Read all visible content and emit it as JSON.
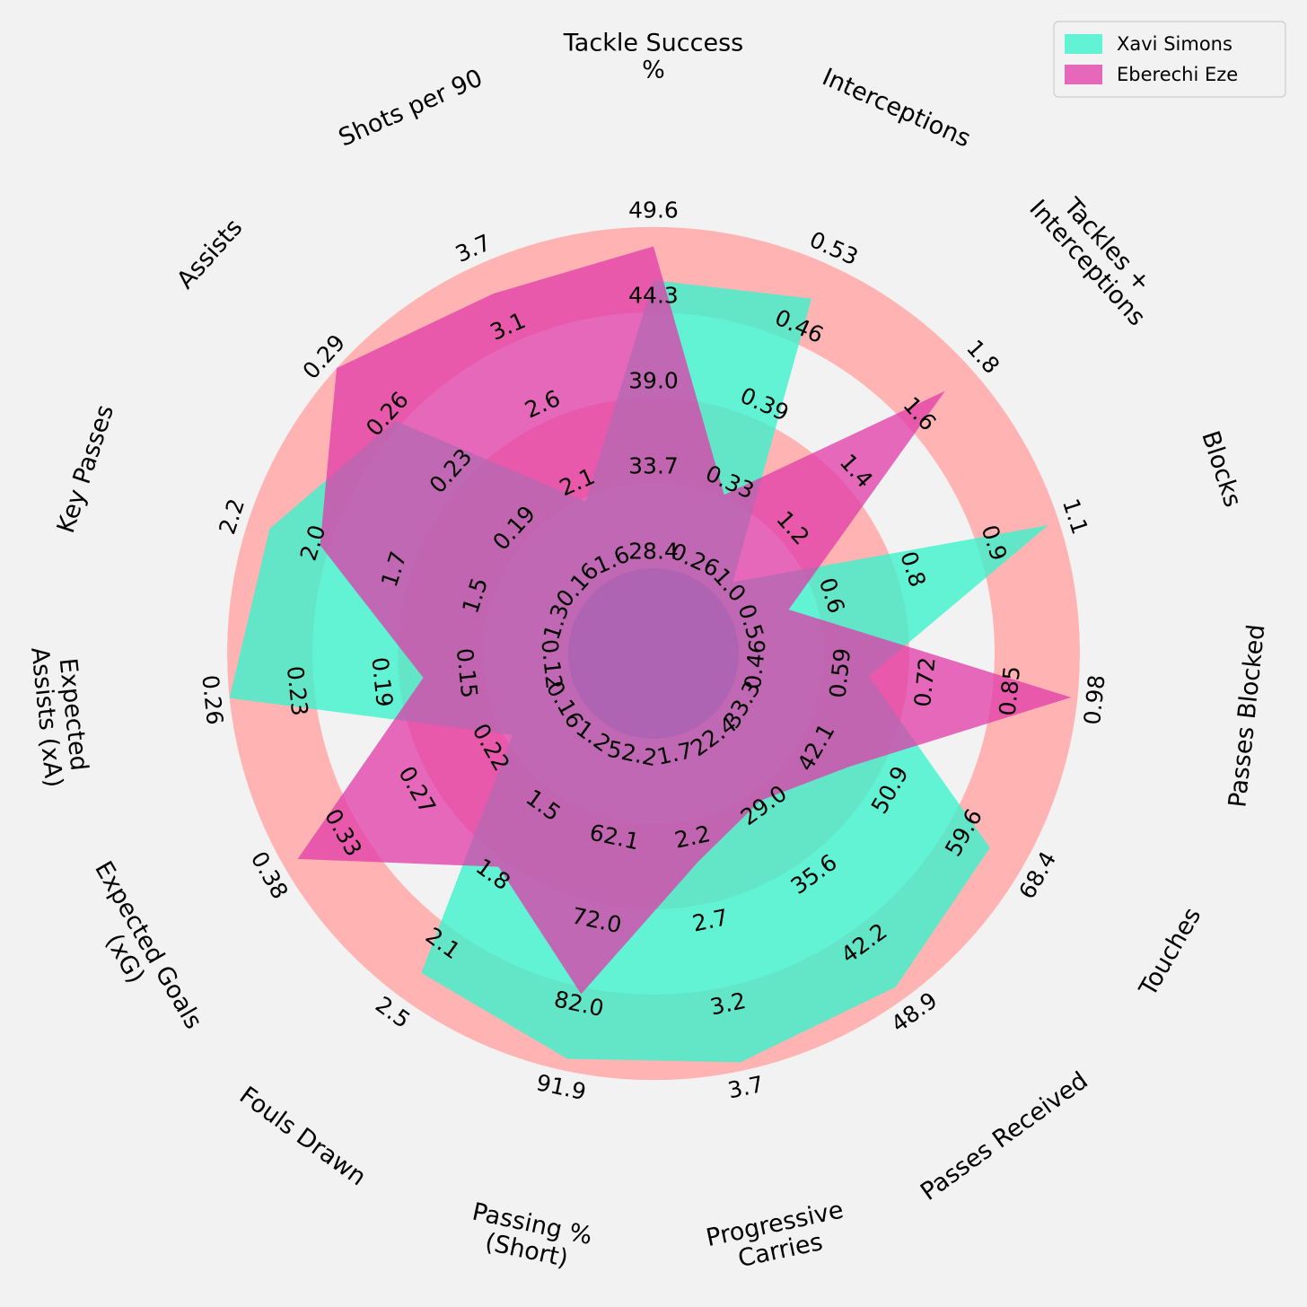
{
  "chart_data": {
    "type": "radar",
    "legend_position": "top-right",
    "colors": {
      "background": "#f2f2f2",
      "ring_dark": "#ffb3b3",
      "ring_light": "#f2f2f2",
      "center": "#a263b0",
      "series_1": "#3cf2cc",
      "series_2": "#e03aa8"
    },
    "params": [
      {
        "label": "Tackle Success\n%",
        "ticks": [
          "28.4",
          "33.7",
          "39.0",
          "44.3",
          "49.6"
        ]
      },
      {
        "label": "Interceptions",
        "ticks": [
          "0.26",
          "0.33",
          "0.39",
          "0.46",
          "0.53"
        ]
      },
      {
        "label": "Tackles +\nInterceptions",
        "ticks": [
          "1.0",
          "1.2",
          "1.4",
          "1.6",
          "1.8"
        ]
      },
      {
        "label": "Blocks",
        "ticks": [
          "0.5",
          "0.6",
          "0.8",
          "0.9",
          "1.1"
        ]
      },
      {
        "label": "Passes Blocked",
        "ticks": [
          "0.46",
          "0.59",
          "0.72",
          "0.85",
          "0.98"
        ]
      },
      {
        "label": "Touches",
        "ticks": [
          "33.3",
          "42.1",
          "50.9",
          "59.6",
          "68.4"
        ]
      },
      {
        "label": "Passes Received",
        "ticks": [
          "22.4",
          "29.0",
          "35.6",
          "42.2",
          "48.9"
        ]
      },
      {
        "label": "Progressive\nCarries",
        "ticks": [
          "1.7",
          "2.2",
          "2.7",
          "3.2",
          "3.7"
        ]
      },
      {
        "label": "Passing %\n(Short)",
        "ticks": [
          "52.2",
          "62.1",
          "72.0",
          "82.0",
          "91.9"
        ]
      },
      {
        "label": "Fouls Drawn",
        "ticks": [
          "1.2",
          "1.5",
          "1.8",
          "2.1",
          "2.5"
        ]
      },
      {
        "label": "Expected Goals\n(xG)",
        "ticks": [
          "0.16",
          "0.22",
          "0.27",
          "0.33",
          "0.38"
        ]
      },
      {
        "label": "Expected\nAssists (xA)",
        "ticks": [
          "0.12",
          "0.15",
          "0.19",
          "0.23",
          "0.26"
        ]
      },
      {
        "label": "Key Passes",
        "ticks": [
          "1.3",
          "1.5",
          "1.7",
          "2.0",
          "2.2"
        ]
      },
      {
        "label": "Assists",
        "ticks": [
          "0.16",
          "0.19",
          "0.23",
          "0.26",
          "0.29"
        ]
      },
      {
        "label": "Shots per 90",
        "ticks": [
          "1.6",
          "2.1",
          "2.6",
          "3.1",
          "3.7"
        ]
      }
    ],
    "series": [
      {
        "name": "Xavi Simons",
        "values": [
          46.3,
          0.5,
          1.05,
          1.08,
          0.66,
          64.5,
          47.8,
          3.65,
          90.5,
          2.38,
          0.21,
          0.26,
          2.14,
          0.26,
          2.1
        ]
      },
      {
        "name": "Eberechi Eze",
        "values": [
          48.4,
          0.33,
          1.72,
          0.6,
          0.97,
          47.8,
          29.9,
          2.45,
          82.8,
          1.88,
          0.37,
          0.18,
          2.0,
          0.29,
          3.5
        ]
      }
    ]
  }
}
